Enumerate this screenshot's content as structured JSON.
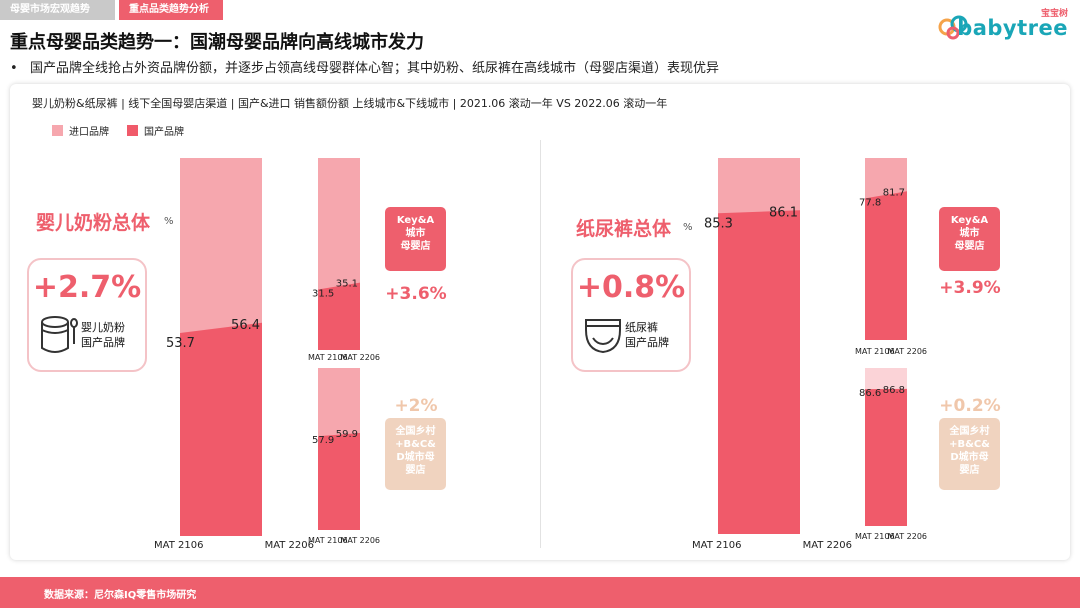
{
  "tabs": [
    {
      "label": "母婴市场宏观趋势",
      "active": false
    },
    {
      "label": "重点品类趋势分析",
      "active": true
    }
  ],
  "logo": {
    "cn": "宝宝树",
    "en": "babytree"
  },
  "title": "重点母婴品类趋势一：国潮母婴品牌向高线城市发力",
  "subtitle": "国产品牌全线抢占外资品牌份额，并逐步占领高线母婴群体心智；其中奶粉、纸尿裤在高线城市（母婴店渠道）表现优异",
  "chart_desc": "婴儿奶粉&纸尿裤 | 线下全国母婴店渠道 | 国产&进口 销售额份额 上线城市&下线城市 | 2021.06 滚动一年 VS 2022.06 滚动一年",
  "legend": [
    {
      "label": "进口品牌",
      "color": "#f6a7ae"
    },
    {
      "label": "国产品牌",
      "color": "#f05a6a"
    }
  ],
  "colors": {
    "import_top": "#f6a7ae",
    "import_light": "#fbd3d7",
    "domestic": "#f05a6a",
    "tan": "#f0d3bf",
    "tan_text": "#f0c7ab"
  },
  "categories": [
    {
      "label": "婴儿奶粉总体",
      "unit": "%",
      "delta": "+2.7%",
      "card_label": [
        "婴儿奶粉",
        "国产品牌"
      ],
      "icon": "formula-can-icon",
      "key_badge": [
        "Key&A",
        "城市",
        "母婴店"
      ],
      "key_delta": "+3.6%",
      "rural_badge": [
        "全国乡村",
        "+B&C&",
        "D城市母",
        "婴店"
      ],
      "rural_delta": "+2%"
    },
    {
      "label": "纸尿裤总体",
      "unit": "%",
      "delta": "+0.8%",
      "card_label": [
        "纸尿裤",
        "国产品牌"
      ],
      "icon": "diaper-icon",
      "key_badge": [
        "Key&A",
        "城市",
        "母婴店"
      ],
      "key_delta": "+3.9%",
      "rural_badge": [
        "全国乡村",
        "+B&C&",
        "D城市母",
        "婴店"
      ],
      "rural_delta": "+0.2%"
    }
  ],
  "chart_data": [
    {
      "type": "area",
      "title": "婴儿奶粉总体",
      "x": [
        "MAT 2106",
        "MAT 2206"
      ],
      "series": [
        {
          "name": "国产品牌",
          "values": [
            53.7,
            56.4
          ]
        },
        {
          "name": "进口品牌",
          "values": [
            46.3,
            43.6
          ]
        }
      ],
      "ylim": [
        0,
        100
      ]
    },
    {
      "type": "area",
      "title": "Key&A城市母婴店",
      "x": [
        "MAT 2106",
        "MAT 2206"
      ],
      "series": [
        {
          "name": "国产品牌",
          "values": [
            31.5,
            35.1
          ]
        },
        {
          "name": "进口品牌",
          "values": [
            68.5,
            64.9
          ]
        }
      ],
      "ylim": [
        0,
        100
      ]
    },
    {
      "type": "area",
      "title": "全国乡村+B&C&D城市母婴店",
      "x": [
        "MAT 2106",
        "MAT 2206"
      ],
      "series": [
        {
          "name": "国产品牌",
          "values": [
            57.9,
            59.9
          ]
        },
        {
          "name": "进口品牌",
          "values": [
            42.1,
            40.1
          ]
        }
      ],
      "ylim": [
        0,
        100
      ]
    },
    {
      "type": "area",
      "title": "纸尿裤总体",
      "x": [
        "MAT 2106",
        "MAT 2206"
      ],
      "series": [
        {
          "name": "国产品牌",
          "values": [
            85.3,
            86.1
          ]
        },
        {
          "name": "进口品牌",
          "values": [
            14.7,
            13.9
          ]
        }
      ],
      "ylim": [
        0,
        100
      ]
    },
    {
      "type": "area",
      "title": "Key&A城市母婴店",
      "x": [
        "MAT 2106",
        "MAT 2206"
      ],
      "series": [
        {
          "name": "国产品牌",
          "values": [
            77.8,
            81.7
          ]
        },
        {
          "name": "进口品牌",
          "values": [
            22.2,
            18.3
          ]
        }
      ],
      "ylim": [
        0,
        100
      ]
    },
    {
      "type": "area",
      "title": "全国乡村+B&C&D城市母婴店",
      "x": [
        "MAT 2106",
        "MAT 2206"
      ],
      "series": [
        {
          "name": "国产品牌",
          "values": [
            86.6,
            86.8
          ]
        },
        {
          "name": "进口品牌",
          "values": [
            13.4,
            13.2
          ]
        }
      ],
      "ylim": [
        0,
        100
      ]
    }
  ],
  "footer": "数据来源：尼尔森IQ零售市场研究"
}
